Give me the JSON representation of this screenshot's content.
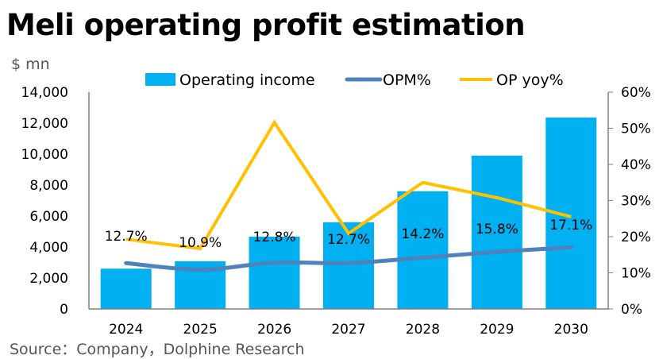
{
  "chart_data": {
    "type": "bar+line",
    "title": "Meli operating profit estimation",
    "ylabel": "$ mn",
    "source": "Source：Company，Dolphine Research",
    "categories": [
      "2024",
      "2025",
      "2026",
      "2027",
      "2028",
      "2029",
      "2030"
    ],
    "ylim": [
      0,
      14000
    ],
    "ylim_right": [
      0,
      60
    ],
    "y_ticks": [
      "0",
      "2,000",
      "4,000",
      "6,000",
      "8,000",
      "10,000",
      "12,000",
      "14,000"
    ],
    "y_right_ticks": [
      "0%",
      "10%",
      "20%",
      "30%",
      "40%",
      "50%",
      "60%"
    ],
    "legend_position": "top",
    "grid": false,
    "series": [
      {
        "name": "Operating income",
        "type": "bar",
        "axis": "left",
        "color": "#00B0F0",
        "values": [
          2600,
          3080,
          4670,
          5600,
          7600,
          9900,
          12360
        ]
      },
      {
        "name": "OPM%",
        "type": "line",
        "axis": "right",
        "color": "#4F81BD",
        "values": [
          12.7,
          10.9,
          12.8,
          12.7,
          14.2,
          15.8,
          17.1
        ],
        "labels": [
          "12.7%",
          "10.9%",
          "12.8%",
          "12.7%",
          "14.2%",
          "15.8%",
          "17.1%"
        ]
      },
      {
        "name": "OP yoy%",
        "type": "line",
        "axis": "right",
        "color": "#FFC000",
        "values": [
          19.3,
          16.7,
          51.6,
          20.9,
          35.0,
          30.8,
          25.5
        ]
      }
    ]
  }
}
